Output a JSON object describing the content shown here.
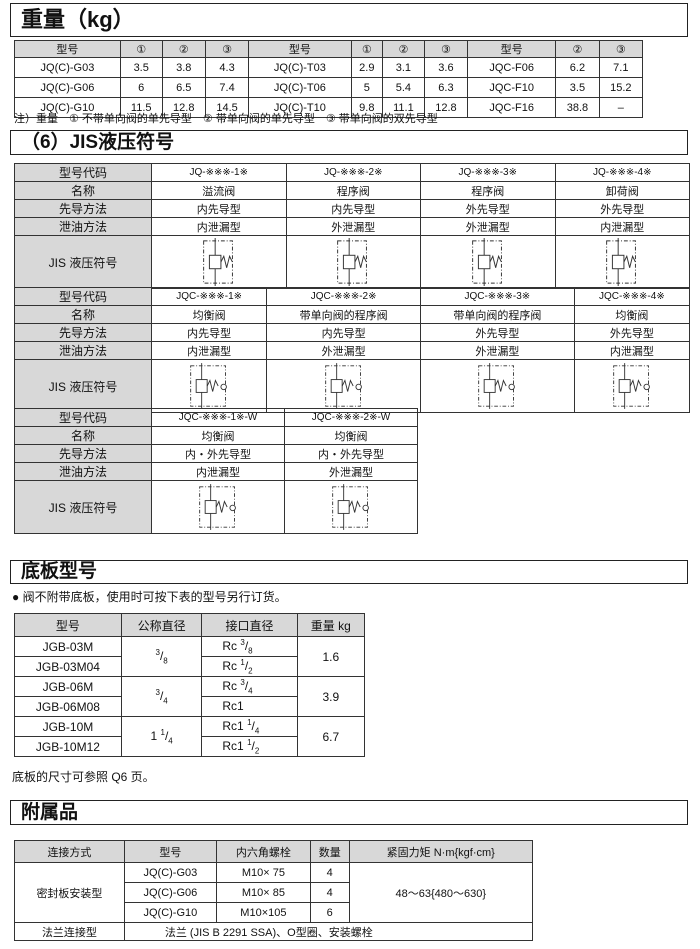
{
  "weight": {
    "title": "重量（kg）",
    "headers": [
      "型号",
      "①",
      "②",
      "③",
      "型号",
      "①",
      "②",
      "③",
      "型号",
      "②",
      "③"
    ],
    "rows": [
      [
        "JQ(C)-G03",
        "3.5",
        "3.8",
        "4.3",
        "JQ(C)-T03",
        "2.9",
        "3.1",
        "3.6",
        "JQC-F06",
        "6.2",
        "7.1"
      ],
      [
        "JQ(C)-G06",
        "6",
        "6.5",
        "7.4",
        "JQ(C)-T06",
        "5",
        "5.4",
        "6.3",
        "JQC-F10",
        "3.5",
        "15.2"
      ],
      [
        "JQ(C)-G10",
        "11.5",
        "12.8",
        "14.5",
        "JQ(C)-T10",
        "9.8",
        "11.1",
        "12.8",
        "JQC-F16",
        "38.8",
        "–"
      ]
    ],
    "note": "注）重量　① 不带单向阀的单先导型　② 带单向阀的单先导型　③ 带单向阀的双先导型"
  },
  "jis": {
    "title": "（6）JIS液压符号",
    "row_labels": [
      "型号代码",
      "名称",
      "先导方法",
      "泄油方法",
      "JIS 液压符号"
    ],
    "tables": [
      {
        "cols": [
          [
            "JQ-※※※-1※",
            "溢流阀",
            "内先导型",
            "内泄漏型"
          ],
          [
            "JQ-※※※-2※",
            "程序阀",
            "内先导型",
            "外泄漏型"
          ],
          [
            "JQ-※※※-3※",
            "程序阀",
            "外先导型",
            "外泄漏型"
          ],
          [
            "JQ-※※※-4※",
            "卸荷阀",
            "外先导型",
            "内泄漏型"
          ]
        ],
        "symbol": "relief-valve-symbol"
      },
      {
        "cols": [
          [
            "JQC-※※※-1※",
            "均衡阀",
            "内先导型",
            "内泄漏型"
          ],
          [
            "JQC-※※※-2※",
            "带单向阀的程序阀",
            "内先导型",
            "外泄漏型"
          ],
          [
            "JQC-※※※-3※",
            "带单向阀的程序阀",
            "外先导型",
            "外泄漏型"
          ],
          [
            "JQC-※※※-4※",
            "均衡阀",
            "外先导型",
            "内泄漏型"
          ]
        ],
        "symbol": "valve-with-check-symbol"
      },
      {
        "cols": [
          [
            "JQC-※※※-1※-W",
            "均衡阀",
            "内・外先导型",
            "内泄漏型"
          ],
          [
            "JQC-※※※-2※-W",
            "均衡阀",
            "内・外先导型",
            "外泄漏型"
          ]
        ],
        "symbol": "valve-with-check-symbol"
      }
    ]
  },
  "base": {
    "title": "底板型号",
    "bullet": "● 阀不附带底板，使用时可按下表的型号另行订货。",
    "headers": [
      "型号",
      "公称直径",
      "接口直径",
      "重量 kg"
    ],
    "groups": [
      {
        "models": [
          "JGB-03M",
          "JGB-03M04"
        ],
        "nominal": {
          "whole": "",
          "num": "3",
          "den": "8"
        },
        "ports": [
          {
            "pre": "Rc ",
            "num": "3",
            "den": "8"
          },
          {
            "pre": "Rc ",
            "num": "1",
            "den": "2"
          }
        ],
        "weight": "1.6"
      },
      {
        "models": [
          "JGB-06M",
          "JGB-06M08"
        ],
        "nominal": {
          "whole": "",
          "num": "3",
          "den": "4"
        },
        "ports": [
          {
            "pre": "Rc ",
            "num": "3",
            "den": "4"
          },
          {
            "pre": "Rc1",
            "num": "",
            "den": ""
          }
        ],
        "weight": "3.9"
      },
      {
        "models": [
          "JGB-10M",
          "JGB-10M12"
        ],
        "nominal": {
          "whole": "1 ",
          "num": "1",
          "den": "4"
        },
        "ports": [
          {
            "pre": "Rc1 ",
            "num": "1",
            "den": "4"
          },
          {
            "pre": "Rc1 ",
            "num": "1",
            "den": "2"
          }
        ],
        "weight": "6.7"
      }
    ],
    "note": "底板的尺寸可参照 Q6 页。"
  },
  "acc": {
    "title": "附属品",
    "headers": [
      "连接方式",
      "型号",
      "内六角螺栓",
      "数量",
      "紧固力矩 N·m{kgf·cm}"
    ],
    "gasket_label": "密封板安装型",
    "rows": [
      [
        "JQ(C)-G03",
        "M10× 75",
        "4"
      ],
      [
        "JQ(C)-G06",
        "M10× 85",
        "4"
      ],
      [
        "JQ(C)-G10",
        "M10×105",
        "6"
      ]
    ],
    "torque": "48～63{480～630}",
    "flange_label": "法兰连接型",
    "flange_text": "法兰 (JIS B 2291 SSA)、O型圈、安装螺栓"
  }
}
